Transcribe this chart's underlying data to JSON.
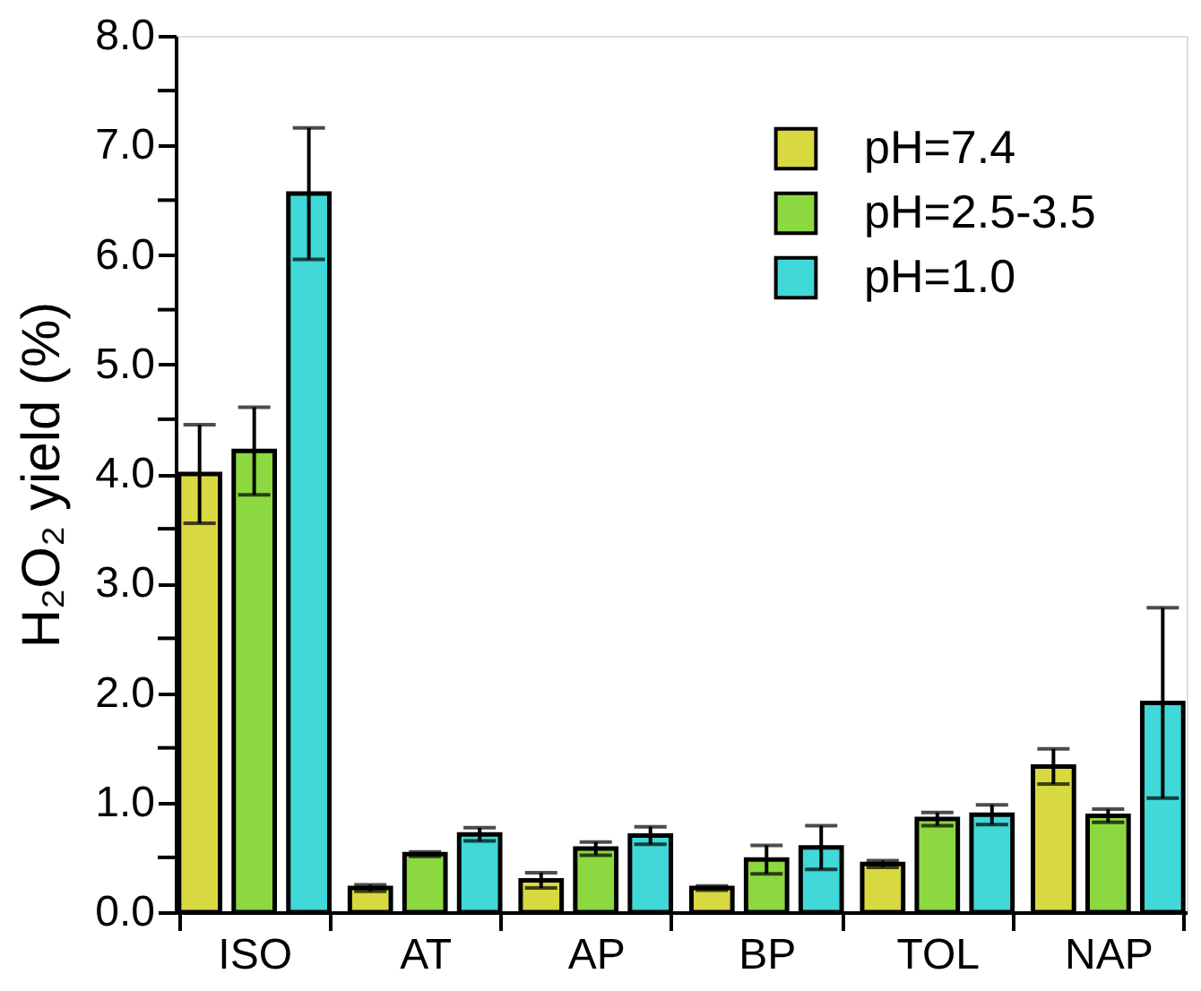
{
  "chart_data": {
    "type": "bar",
    "ylabel": "H₂O₂ yield (%)",
    "categories": [
      "ISO",
      "AT",
      "AP",
      "BP",
      "TOL",
      "NAP"
    ],
    "series": [
      {
        "name": "pH=7.4",
        "color": "#d8d840",
        "values": [
          4.0,
          0.22,
          0.29,
          0.22,
          0.44,
          1.33
        ],
        "errors": [
          0.45,
          0.03,
          0.07,
          0.02,
          0.03,
          0.16
        ]
      },
      {
        "name": "pH=2.5-3.5",
        "color": "#8cd840",
        "values": [
          4.21,
          0.53,
          0.58,
          0.48,
          0.85,
          0.88
        ],
        "errors": [
          0.4,
          0.02,
          0.06,
          0.13,
          0.06,
          0.06
        ]
      },
      {
        "name": "pH=1.0",
        "color": "#40d8d8",
        "values": [
          6.56,
          0.71,
          0.7,
          0.59,
          0.89,
          1.91
        ],
        "errors": [
          0.6,
          0.06,
          0.08,
          0.2,
          0.09,
          0.87
        ]
      }
    ],
    "ylim": [
      0,
      8
    ],
    "yticks": [
      {
        "value": 0,
        "label": "0.0"
      },
      {
        "value": 0.5,
        "label": null
      },
      {
        "value": 1,
        "label": "1.0"
      },
      {
        "value": 1.5,
        "label": null
      },
      {
        "value": 2,
        "label": "2.0"
      },
      {
        "value": 2.5,
        "label": null
      },
      {
        "value": 3,
        "label": "3.0"
      },
      {
        "value": 3.5,
        "label": null
      },
      {
        "value": 4,
        "label": "4.0"
      },
      {
        "value": 4.5,
        "label": null
      },
      {
        "value": 5,
        "label": "5.0"
      },
      {
        "value": 5.5,
        "label": null
      },
      {
        "value": 6,
        "label": "6.0"
      },
      {
        "value": 6.5,
        "label": null
      },
      {
        "value": 7,
        "label": "7.0"
      },
      {
        "value": 7.5,
        "label": null
      },
      {
        "value": 8,
        "label": "8.0"
      }
    ],
    "grid": false,
    "legend": "top right"
  }
}
